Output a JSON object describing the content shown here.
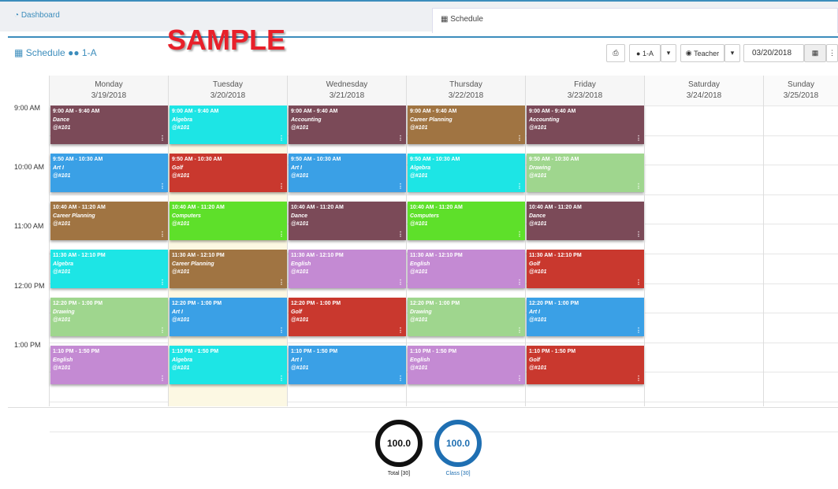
{
  "tabs": {
    "dashboard": "Dashboard",
    "schedule": "Schedule"
  },
  "watermark": "SAMPLE",
  "header": {
    "title": "Schedule",
    "class_label": "1-A"
  },
  "toolbar": {
    "class_select": "1-A",
    "teacher_select": "Teacher",
    "date_value": "03/20/2018"
  },
  "time_labels": [
    "9:00 AM",
    "10:00 AM",
    "11:00 AM",
    "12:00 PM",
    "1:00 PM"
  ],
  "days": [
    {
      "name": "Monday",
      "date": "3/19/2018"
    },
    {
      "name": "Tuesday",
      "date": "3/20/2018"
    },
    {
      "name": "Wednesday",
      "date": "3/21/2018"
    },
    {
      "name": "Thursday",
      "date": "3/22/2018"
    },
    {
      "name": "Friday",
      "date": "3/23/2018"
    },
    {
      "name": "Saturday",
      "date": "3/24/2018"
    },
    {
      "name": "Sunday",
      "date": "3/25/2018"
    }
  ],
  "colors": {
    "dance": "#7b4a58",
    "algebra": "#1de5e5",
    "accounting": "#7b4a58",
    "career": "#a07442",
    "art": "#3aa0e6",
    "golf": "#c9382e",
    "drawing": "#9fd68e",
    "computers": "#5ee02a",
    "english": "#c48ad3",
    "accent": "#3c8dbc"
  },
  "events": [
    {
      "day": 0,
      "slot": 0,
      "time": "9:00 AM - 9:40 AM",
      "course": "Dance",
      "room": "@#101",
      "color": "#7b4a58"
    },
    {
      "day": 0,
      "slot": 1,
      "time": "9:50 AM - 10:30 AM",
      "course": "Art I",
      "room": "@#101",
      "color": "#3aa0e6"
    },
    {
      "day": 0,
      "slot": 2,
      "time": "10:40 AM - 11:20 AM",
      "course": "Career Planning",
      "room": "@#101",
      "color": "#a07442"
    },
    {
      "day": 0,
      "slot": 3,
      "time": "11:30 AM - 12:10 PM",
      "course": "Algebra",
      "room": "@#101",
      "color": "#1de5e5"
    },
    {
      "day": 0,
      "slot": 4,
      "time": "12:20 PM - 1:00 PM",
      "course": "Drawing",
      "room": "@#101",
      "color": "#9fd68e"
    },
    {
      "day": 0,
      "slot": 5,
      "time": "1:10 PM - 1:50 PM",
      "course": "English",
      "room": "@#101",
      "color": "#c48ad3"
    },
    {
      "day": 1,
      "slot": 0,
      "time": "9:00 AM - 9:40 AM",
      "course": "Algebra",
      "room": "@#101",
      "color": "#1de5e5"
    },
    {
      "day": 1,
      "slot": 1,
      "time": "9:50 AM - 10:30 AM",
      "course": "Golf",
      "room": "@#101",
      "color": "#c9382e"
    },
    {
      "day": 1,
      "slot": 2,
      "time": "10:40 AM - 11:20 AM",
      "course": "Computers",
      "room": "@#101",
      "color": "#5ee02a"
    },
    {
      "day": 1,
      "slot": 3,
      "time": "11:30 AM - 12:10 PM",
      "course": "Career Planning",
      "room": "@#101",
      "color": "#a07442"
    },
    {
      "day": 1,
      "slot": 4,
      "time": "12:20 PM - 1:00 PM",
      "course": "Art I",
      "room": "@#101",
      "color": "#3aa0e6"
    },
    {
      "day": 1,
      "slot": 5,
      "time": "1:10 PM - 1:50 PM",
      "course": "Algebra",
      "room": "@#101",
      "color": "#1de5e5"
    },
    {
      "day": 2,
      "slot": 0,
      "time": "9:00 AM - 9:40 AM",
      "course": "Accounting",
      "room": "@#101",
      "color": "#7b4a58"
    },
    {
      "day": 2,
      "slot": 1,
      "time": "9:50 AM - 10:30 AM",
      "course": "Art I",
      "room": "@#101",
      "color": "#3aa0e6"
    },
    {
      "day": 2,
      "slot": 2,
      "time": "10:40 AM - 11:20 AM",
      "course": "Dance",
      "room": "@#101",
      "color": "#7b4a58"
    },
    {
      "day": 2,
      "slot": 3,
      "time": "11:30 AM - 12:10 PM",
      "course": "English",
      "room": "@#101",
      "color": "#c48ad3"
    },
    {
      "day": 2,
      "slot": 4,
      "time": "12:20 PM - 1:00 PM",
      "course": "Golf",
      "room": "@#101",
      "color": "#c9382e"
    },
    {
      "day": 2,
      "slot": 5,
      "time": "1:10 PM - 1:50 PM",
      "course": "Art I",
      "room": "@#101",
      "color": "#3aa0e6"
    },
    {
      "day": 3,
      "slot": 0,
      "time": "9:00 AM - 9:40 AM",
      "course": "Career Planning",
      "room": "@#101",
      "color": "#a07442"
    },
    {
      "day": 3,
      "slot": 1,
      "time": "9:50 AM - 10:30 AM",
      "course": "Algebra",
      "room": "@#101",
      "color": "#1de5e5"
    },
    {
      "day": 3,
      "slot": 2,
      "time": "10:40 AM - 11:20 AM",
      "course": "Computers",
      "room": "@#101",
      "color": "#5ee02a"
    },
    {
      "day": 3,
      "slot": 3,
      "time": "11:30 AM - 12:10 PM",
      "course": "English",
      "room": "@#101",
      "color": "#c48ad3"
    },
    {
      "day": 3,
      "slot": 4,
      "time": "12:20 PM - 1:00 PM",
      "course": "Drawing",
      "room": "@#101",
      "color": "#9fd68e"
    },
    {
      "day": 3,
      "slot": 5,
      "time": "1:10 PM - 1:50 PM",
      "course": "English",
      "room": "@#101",
      "color": "#c48ad3"
    },
    {
      "day": 4,
      "slot": 0,
      "time": "9:00 AM - 9:40 AM",
      "course": "Accounting",
      "room": "@#101",
      "color": "#7b4a58"
    },
    {
      "day": 4,
      "slot": 1,
      "time": "9:50 AM - 10:30 AM",
      "course": "Drawing",
      "room": "@#101",
      "color": "#9fd68e"
    },
    {
      "day": 4,
      "slot": 2,
      "time": "10:40 AM - 11:20 AM",
      "course": "Dance",
      "room": "@#101",
      "color": "#7b4a58"
    },
    {
      "day": 4,
      "slot": 3,
      "time": "11:30 AM - 12:10 PM",
      "course": "Golf",
      "room": "@#101",
      "color": "#c9382e"
    },
    {
      "day": 4,
      "slot": 4,
      "time": "12:20 PM - 1:00 PM",
      "course": "Art I",
      "room": "@#101",
      "color": "#3aa0e6"
    },
    {
      "day": 4,
      "slot": 5,
      "time": "1:10 PM - 1:50 PM",
      "course": "Golf",
      "room": "@#101",
      "color": "#c9382e"
    }
  ],
  "gauges": {
    "total": {
      "value": "100.0",
      "label": "Total [30]"
    },
    "class": {
      "value": "100.0",
      "label": "Class [30]"
    }
  }
}
